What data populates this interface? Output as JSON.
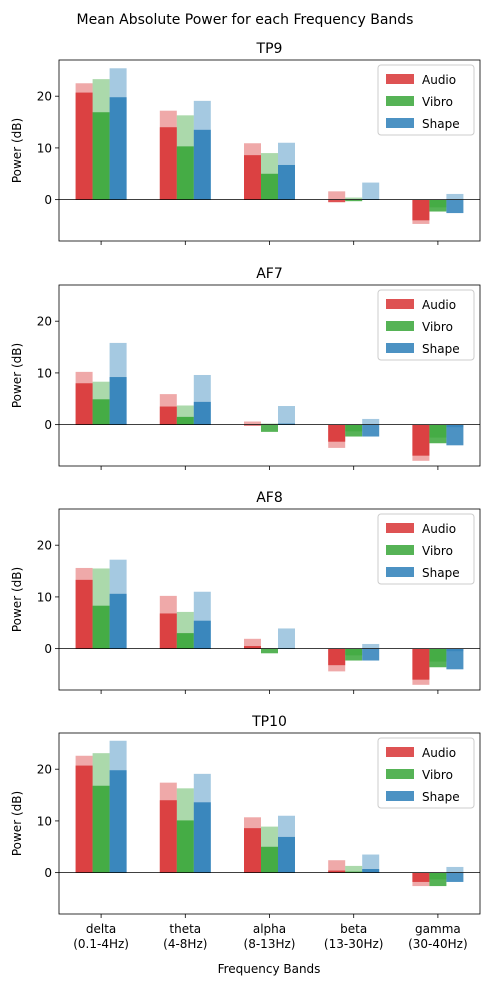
{
  "figure": {
    "suptitle": "Mean Absolute Power for each Frequency Bands",
    "xlabel": "Frequency Bands"
  },
  "colors": {
    "Audio": "#d62728",
    "Vibro": "#2ca02c",
    "Shape": "#1f77b4"
  },
  "chart_data": [
    {
      "type": "bar",
      "title": "TP9",
      "ylabel": "Power (dB)",
      "ylim": [
        -8,
        27
      ],
      "yticks": [
        0,
        10,
        20
      ],
      "legend": "top-right",
      "categories": [
        "delta\n(0.1-4Hz)",
        "theta\n(4-8Hz)",
        "alpha\n(8-13Hz)",
        "beta\n(13-30Hz)",
        "gamma\n(30-40Hz)"
      ],
      "series": [
        {
          "name": "Audio",
          "values": [
            20.7,
            14.0,
            8.6,
            -0.5,
            -4.0
          ],
          "upper": [
            22.5,
            17.2,
            10.9,
            1.6,
            -4.7
          ]
        },
        {
          "name": "Vibro",
          "values": [
            16.9,
            10.3,
            5.0,
            -0.3,
            -2.3
          ],
          "upper": [
            23.3,
            16.3,
            9.0,
            0.4,
            -1.5
          ]
        },
        {
          "name": "Shape",
          "values": [
            19.8,
            13.5,
            6.7,
            0.1,
            -2.6
          ],
          "upper": [
            25.4,
            19.1,
            11.0,
            3.3,
            1.1
          ]
        }
      ]
    },
    {
      "type": "bar",
      "title": "AF7",
      "ylabel": "Power (dB)",
      "ylim": [
        -8,
        27
      ],
      "yticks": [
        0,
        10,
        20
      ],
      "legend": "top-right",
      "categories": [
        "delta\n(0.1-4Hz)",
        "theta\n(4-8Hz)",
        "alpha\n(8-13Hz)",
        "beta\n(13-30Hz)",
        "gamma\n(30-40Hz)"
      ],
      "series": [
        {
          "name": "Audio",
          "values": [
            8.0,
            3.5,
            -0.2,
            -3.3,
            -6.0
          ],
          "upper": [
            10.2,
            5.9,
            0.6,
            -4.5,
            -7.0
          ]
        },
        {
          "name": "Vibro",
          "values": [
            4.9,
            1.5,
            -1.4,
            -2.3,
            -3.6
          ],
          "upper": [
            8.3,
            3.7,
            0.2,
            -1.3,
            -2.5
          ]
        },
        {
          "name": "Shape",
          "values": [
            9.2,
            4.4,
            0.2,
            -2.3,
            -4.0
          ],
          "upper": [
            15.8,
            9.6,
            3.6,
            1.1,
            -0.5
          ]
        }
      ]
    },
    {
      "type": "bar",
      "title": "AF8",
      "ylabel": "Power (dB)",
      "ylim": [
        -8,
        27
      ],
      "yticks": [
        0,
        10,
        20
      ],
      "legend": "top-right",
      "categories": [
        "delta\n(0.1-4Hz)",
        "theta\n(4-8Hz)",
        "alpha\n(8-13Hz)",
        "beta\n(13-30Hz)",
        "gamma\n(30-40Hz)"
      ],
      "series": [
        {
          "name": "Audio",
          "values": [
            13.3,
            6.8,
            0.5,
            -3.2,
            -6.0
          ],
          "upper": [
            15.6,
            10.2,
            1.9,
            -4.4,
            -7.0
          ]
        },
        {
          "name": "Vibro",
          "values": [
            8.3,
            3.0,
            -0.9,
            -2.3,
            -3.6
          ],
          "upper": [
            15.5,
            7.1,
            0.1,
            -1.3,
            -2.5
          ]
        },
        {
          "name": "Shape",
          "values": [
            10.6,
            5.4,
            0.1,
            -2.3,
            -4.0
          ],
          "upper": [
            17.2,
            11.0,
            3.9,
            0.9,
            -0.5
          ]
        }
      ]
    },
    {
      "type": "bar",
      "title": "TP10",
      "ylabel": "Power (dB)",
      "ylim": [
        -8,
        27
      ],
      "yticks": [
        0,
        10,
        20
      ],
      "legend": "top-right",
      "categories": [
        "delta\n(0.1-4Hz)",
        "theta\n(4-8Hz)",
        "alpha\n(8-13Hz)",
        "beta\n(13-30Hz)",
        "gamma\n(30-40Hz)"
      ],
      "series": [
        {
          "name": "Audio",
          "values": [
            20.7,
            14.0,
            8.6,
            0.4,
            -1.8
          ],
          "upper": [
            22.6,
            17.4,
            10.7,
            2.4,
            -2.6
          ]
        },
        {
          "name": "Vibro",
          "values": [
            16.8,
            10.1,
            5.0,
            0.2,
            -2.6
          ],
          "upper": [
            23.1,
            16.3,
            8.9,
            1.3,
            -1.3
          ]
        },
        {
          "name": "Shape",
          "values": [
            19.8,
            13.6,
            6.9,
            0.7,
            -1.8
          ],
          "upper": [
            25.5,
            19.1,
            11.0,
            3.5,
            1.1
          ]
        }
      ]
    }
  ]
}
